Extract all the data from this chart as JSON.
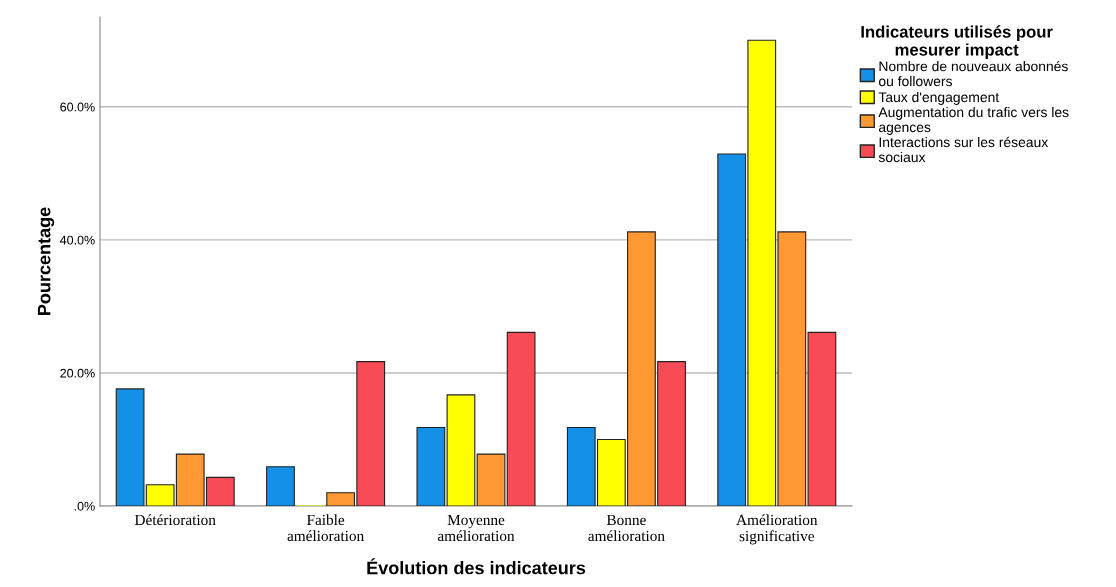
{
  "chart_data": {
    "type": "bar",
    "xlabel": "Évolution des indicateurs",
    "ylabel": "Pourcentage",
    "legend_title": "Indicateurs utilisés pour\nmesurer impact",
    "categories": [
      "Détérioration",
      "Faible\namélioration",
      "Moyenne\namélioration",
      "Bonne\namélioration",
      "Amélioration\nsignificative"
    ],
    "series": [
      {
        "name": "Nombre de nouveaux abonnés\nou followers",
        "color": "#1490e6",
        "values": [
          17.6,
          5.9,
          11.8,
          11.8,
          52.9
        ]
      },
      {
        "name": "Taux d'engagement",
        "color": "#ffff00",
        "values": [
          3.2,
          0,
          16.7,
          10.0,
          70.0
        ]
      },
      {
        "name": "Augmentation du trafic vers les\nagences",
        "color": "#ff9933",
        "values": [
          7.8,
          2.0,
          7.8,
          41.2,
          41.2
        ]
      },
      {
        "name": "Interactions sur les réseaux\nsociaux",
        "color": "#f94b55",
        "values": [
          4.3,
          21.7,
          26.1,
          21.7,
          26.1
        ]
      }
    ],
    "ylim": [
      0,
      73.5
    ],
    "yticks": [
      {
        "value": 0,
        "label": ".0%"
      },
      {
        "value": 20,
        "label": "20.0%"
      },
      {
        "value": 40,
        "label": "40.0%"
      },
      {
        "value": 60,
        "label": "60.0%"
      }
    ],
    "grid": "y",
    "legend": "top right"
  }
}
